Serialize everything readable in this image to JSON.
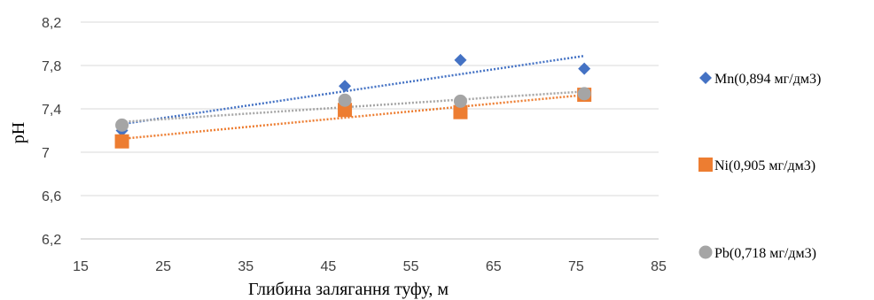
{
  "chart_data": {
    "type": "scatter",
    "xlabel": "Глибина залягання туфу, м",
    "ylabel": "pH",
    "xlim": [
      15,
      85
    ],
    "ylim": [
      6.2,
      8.2
    ],
    "x_ticks": [
      "15",
      "25",
      "35",
      "45",
      "55",
      "65",
      "75",
      "85"
    ],
    "x_tick_values": [
      15,
      25,
      35,
      45,
      55,
      65,
      75,
      85
    ],
    "y_ticks": [
      "6,2",
      "6,6",
      "7",
      "7,4",
      "7,8",
      "8,2"
    ],
    "y_tick_values": [
      6.2,
      6.6,
      7.0,
      7.4,
      7.8,
      8.2
    ],
    "grid": "horizontal",
    "legend_placement": "right",
    "trendlines": "linear, dotted",
    "series": [
      {
        "name": "Mn(0,894 мг/дм3)",
        "marker": "diamond",
        "color": "#4472C4",
        "x": [
          20,
          47,
          61,
          76
        ],
        "y": [
          7.2,
          7.61,
          7.85,
          7.77
        ]
      },
      {
        "name": "Ni(0,905 мг/дм3)",
        "marker": "square",
        "color": "#ED7D31",
        "x": [
          20,
          47,
          61,
          76
        ],
        "y": [
          7.1,
          7.39,
          7.37,
          7.53
        ]
      },
      {
        "name": "Pb(0,718 мг/дм3)",
        "marker": "circle",
        "color": "#A5A5A5",
        "x": [
          20,
          47,
          61,
          76
        ],
        "y": [
          7.25,
          7.48,
          7.47,
          7.54
        ]
      }
    ]
  }
}
